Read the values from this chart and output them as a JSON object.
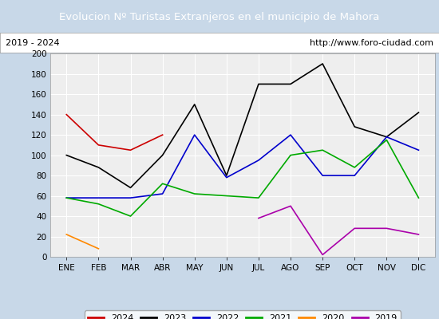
{
  "title": "Evolucion Nº Turistas Extranjeros en el municipio de Mahora",
  "subtitle_left": "2019 - 2024",
  "subtitle_right": "http://www.foro-ciudad.com",
  "months": [
    "ENE",
    "FEB",
    "MAR",
    "ABR",
    "MAY",
    "JUN",
    "JUL",
    "AGO",
    "SEP",
    "OCT",
    "NOV",
    "DIC"
  ],
  "series": {
    "2024": {
      "values": [
        140,
        110,
        105,
        120,
        null,
        null,
        null,
        null,
        null,
        null,
        null,
        null
      ],
      "color": "#cc0000"
    },
    "2023": {
      "values": [
        100,
        88,
        68,
        100,
        150,
        80,
        170,
        170,
        190,
        128,
        118,
        142
      ],
      "color": "#000000"
    },
    "2022": {
      "values": [
        58,
        58,
        58,
        62,
        120,
        78,
        95,
        120,
        80,
        80,
        118,
        105
      ],
      "color": "#0000cc"
    },
    "2021": {
      "values": [
        58,
        52,
        40,
        72,
        62,
        60,
        58,
        100,
        105,
        88,
        115,
        58
      ],
      "color": "#00aa00"
    },
    "2020": {
      "values": [
        22,
        8,
        null,
        null,
        null,
        null,
        null,
        null,
        null,
        null,
        null,
        null
      ],
      "color": "#ff8800"
    },
    "2019": {
      "values": [
        null,
        null,
        null,
        null,
        null,
        null,
        38,
        50,
        2,
        28,
        28,
        22
      ],
      "color": "#aa00aa"
    }
  },
  "ylim": [
    0,
    200
  ],
  "yticks": [
    0,
    20,
    40,
    60,
    80,
    100,
    120,
    140,
    160,
    180,
    200
  ],
  "title_bg_color": "#4a86c8",
  "title_text_color": "#ffffff",
  "plot_bg_color": "#eeeeee",
  "grid_color": "#ffffff",
  "legend_order": [
    "2024",
    "2023",
    "2022",
    "2021",
    "2020",
    "2019"
  ],
  "fig_bg_color": "#c8d8e8"
}
